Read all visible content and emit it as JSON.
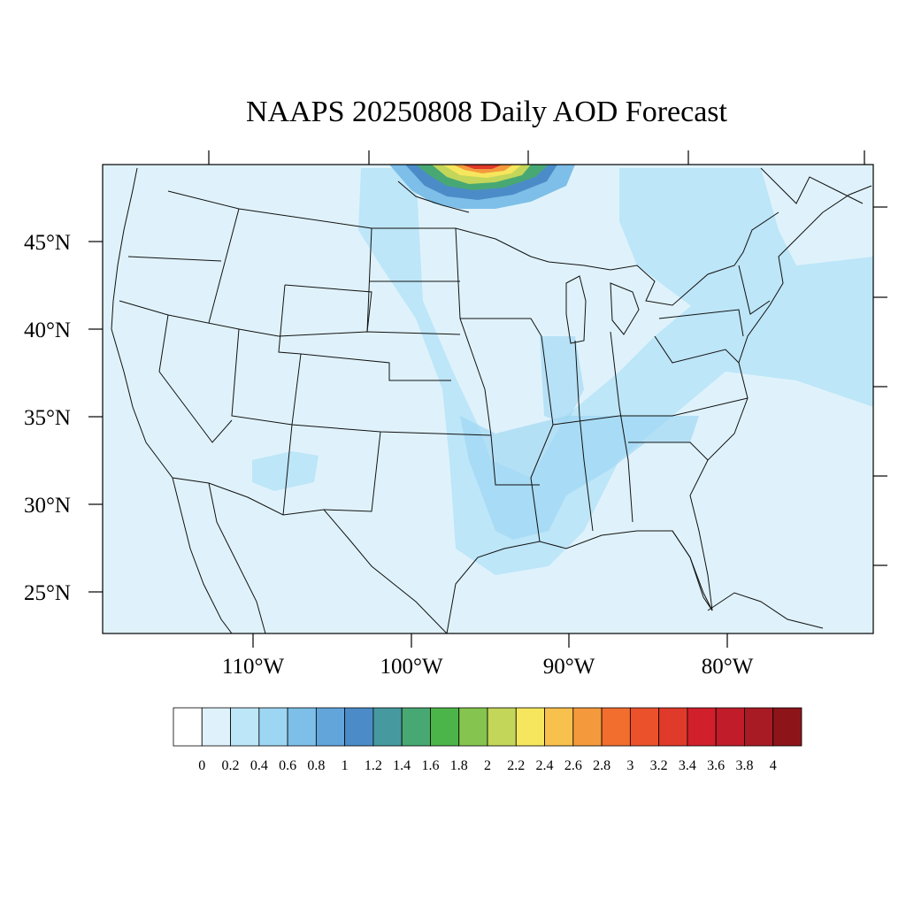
{
  "title": "NAAPS 20250808 Daily AOD Forecast",
  "map": {
    "lat_labels": [
      "45°N",
      "40°N",
      "35°N",
      "30°N",
      "25°N"
    ],
    "lon_labels": [
      "110°W",
      "100°W",
      "90°W",
      "80°W"
    ]
  },
  "colorbar": {
    "labels": [
      "0",
      "0.2",
      "0.4",
      "0.6",
      "0.8",
      "1",
      "1.2",
      "1.4",
      "1.6",
      "1.8",
      "2",
      "2.2",
      "2.4",
      "2.6",
      "2.8",
      "3",
      "3.2",
      "3.4",
      "3.6",
      "3.8",
      "4"
    ],
    "colors": [
      "#ffffff",
      "#dff2fb",
      "#bde6f8",
      "#9dd6f3",
      "#7dbfe8",
      "#62a5db",
      "#4b8cc8",
      "#46999e",
      "#48a874",
      "#4cb549",
      "#85c44e",
      "#c3d65a",
      "#f6e65e",
      "#f8c04c",
      "#f59a3c",
      "#f26e2f",
      "#eb522b",
      "#df3a2a",
      "#d11f2c",
      "#c01c2a",
      "#a91b24",
      "#8d1519"
    ]
  }
}
